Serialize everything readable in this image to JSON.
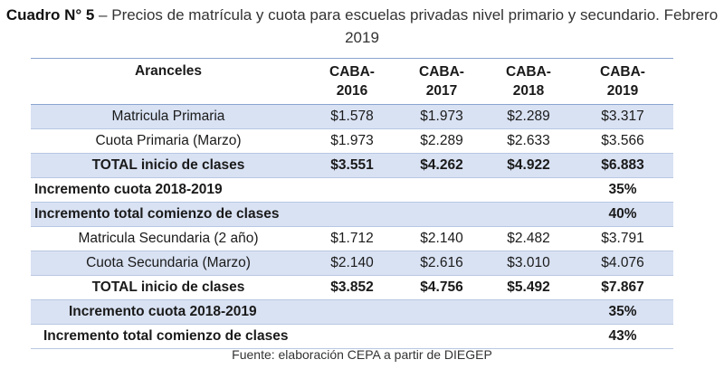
{
  "title": {
    "prefix": "Cuadro N° 5",
    "text": " – Precios de matrícula y cuota para escuelas privadas nivel primario y secundario. Febrero 2019"
  },
  "table": {
    "headers": [
      "Aranceles",
      "CABA-\n2016",
      "CABA-\n2017",
      "CABA-\n2018",
      "CABA-\n2019"
    ],
    "rows": [
      {
        "label": "Matricula Primaria",
        "values": [
          "$1.578",
          "$1.973",
          "$2.289",
          "$3.317"
        ]
      },
      {
        "label": "Cuota Primaria (Marzo)",
        "values": [
          "$1.973",
          "$2.289",
          "$2.633",
          "$3.566"
        ]
      },
      {
        "label": "TOTAL inicio de clases",
        "values": [
          "$3.551",
          "$4.262",
          "$4.922",
          "$6.883"
        ]
      },
      {
        "label": "Incremento cuota 2018-2019",
        "values": [
          "",
          "",
          "",
          "35%"
        ]
      },
      {
        "label": "Incremento total comienzo de clases",
        "values": [
          "",
          "",
          "",
          "40%"
        ]
      },
      {
        "label": "Matricula Secundaria (2 año)",
        "values": [
          "$1.712",
          "$2.140",
          "$2.482",
          "$3.791"
        ]
      },
      {
        "label": "Cuota Secundaria (Marzo)",
        "values": [
          "$2.140",
          "$2.616",
          "$3.010",
          "$4.076"
        ]
      },
      {
        "label": "TOTAL inicio de clases",
        "values": [
          "$3.852",
          "$4.756",
          "$5.492",
          "$7.867"
        ]
      },
      {
        "label": "Incremento cuota 2018-2019",
        "values": [
          "",
          "",
          "",
          "35%"
        ]
      },
      {
        "label": "Incremento total comienzo de clases",
        "values": [
          "",
          "",
          "",
          "43%"
        ]
      }
    ]
  },
  "source": "Fuente: elaboración CEPA a partir de DIEGEP",
  "colors": {
    "row_shade": "#d9e2f3",
    "rule": "#8aa4d0"
  }
}
